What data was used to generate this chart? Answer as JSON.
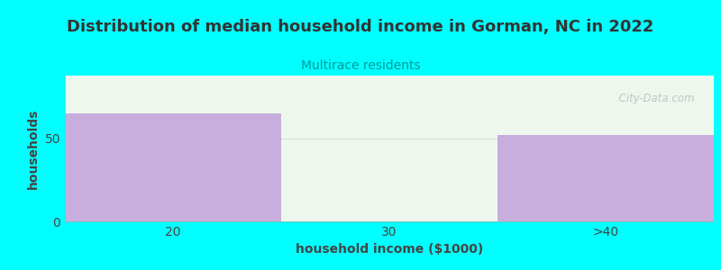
{
  "title": "Distribution of median household income in Gorman, NC in 2022",
  "subtitle": "Multirace residents",
  "xlabel": "household income ($1000)",
  "ylabel": "households",
  "categories": [
    "20",
    "30",
    ">40"
  ],
  "values": [
    65,
    0,
    52
  ],
  "bar_color": "#c8aedd",
  "bar_edgecolor": "#c8aedd",
  "plot_bg_color": "#edf7ed",
  "fig_bg_color": "#00ffff",
  "title_color": "#333333",
  "subtitle_color": "#009999",
  "axis_label_color": "#444444",
  "tick_label_color": "#444444",
  "yticks": [
    0,
    50
  ],
  "ylim": [
    0,
    88
  ],
  "title_fontsize": 13,
  "subtitle_fontsize": 10,
  "label_fontsize": 10,
  "watermark_text": "  City-Data.com"
}
